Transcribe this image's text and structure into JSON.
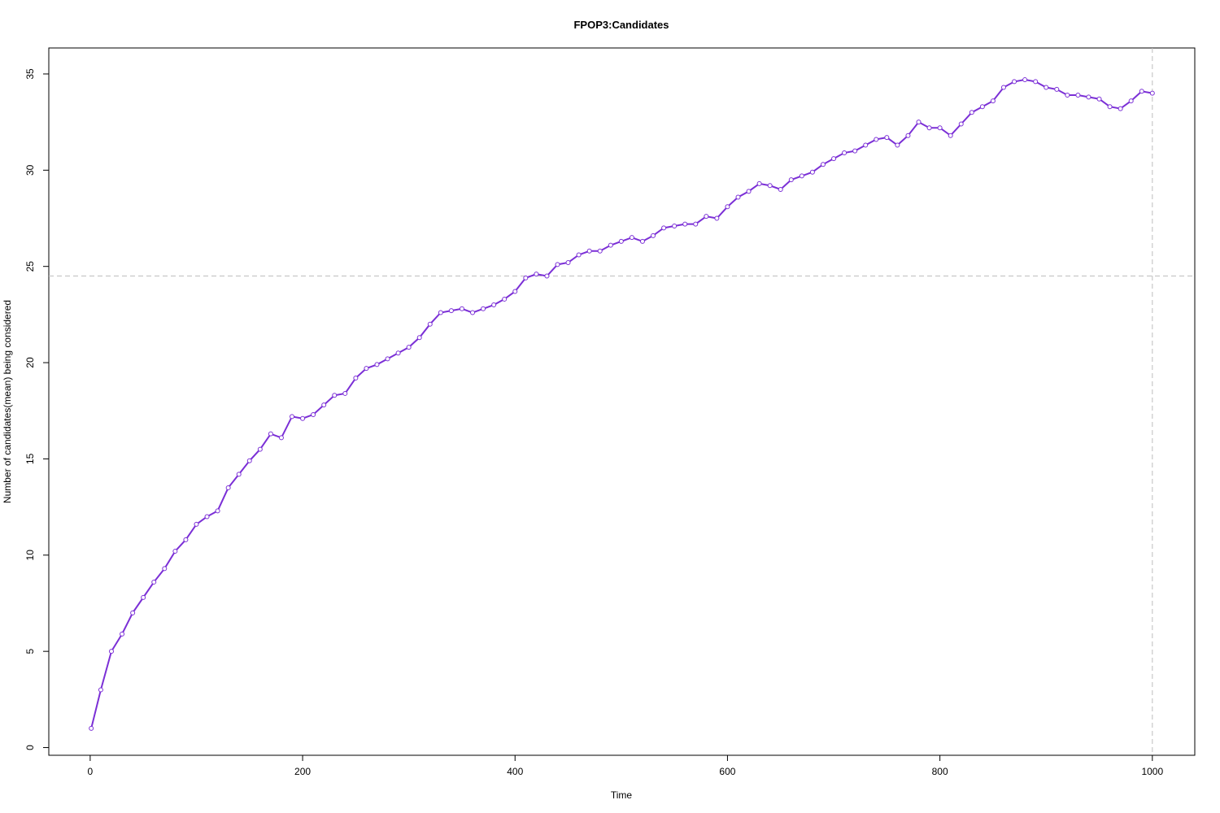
{
  "chart_data": {
    "type": "line",
    "title": "FPOP3:Candidates",
    "x_label": "Time",
    "y_label": "Number of candidates(mean) being considered",
    "x": [
      1,
      10,
      20,
      30,
      40,
      50,
      60,
      70,
      80,
      90,
      100,
      110,
      120,
      130,
      140,
      150,
      160,
      170,
      180,
      190,
      200,
      210,
      220,
      230,
      240,
      250,
      260,
      270,
      280,
      290,
      300,
      310,
      320,
      330,
      340,
      350,
      360,
      370,
      380,
      390,
      400,
      410,
      420,
      430,
      440,
      450,
      460,
      470,
      480,
      490,
      500,
      510,
      520,
      530,
      540,
      550,
      560,
      570,
      580,
      590,
      600,
      610,
      620,
      630,
      640,
      650,
      660,
      670,
      680,
      690,
      700,
      710,
      720,
      730,
      740,
      750,
      760,
      770,
      780,
      790,
      800,
      810,
      820,
      830,
      840,
      850,
      860,
      870,
      880,
      890,
      900,
      910,
      920,
      930,
      940,
      950,
      960,
      970,
      980,
      990,
      1000
    ],
    "series": [
      {
        "color": "#7b2fd6",
        "values": [
          1.0,
          3.0,
          5.0,
          5.9,
          7.0,
          7.8,
          8.6,
          9.3,
          10.2,
          10.8,
          11.6,
          12.0,
          12.3,
          13.5,
          14.2,
          14.9,
          15.5,
          16.3,
          16.1,
          17.2,
          17.1,
          17.3,
          17.8,
          18.3,
          18.4,
          19.2,
          19.7,
          19.9,
          20.2,
          20.5,
          20.8,
          21.3,
          22.0,
          22.6,
          22.7,
          22.8,
          22.6,
          22.8,
          23.0,
          23.3,
          23.7,
          24.4,
          24.6,
          24.5,
          25.1,
          25.2,
          25.6,
          25.8,
          25.8,
          26.1,
          26.3,
          26.5,
          26.3,
          26.6,
          27.0,
          27.1,
          27.2,
          27.2,
          27.6,
          27.5,
          28.1,
          28.6,
          28.9,
          29.3,
          29.2,
          29.0,
          29.5,
          29.7,
          29.9,
          30.3,
          30.6,
          30.9,
          31.0,
          31.3,
          31.6,
          31.7,
          31.3,
          31.8,
          32.5,
          32.2,
          32.2,
          31.8,
          32.4,
          33.0,
          33.3,
          33.6,
          34.3,
          34.6,
          34.7,
          34.6,
          34.3,
          34.2,
          33.9,
          33.9,
          33.8,
          33.7,
          33.3,
          33.2,
          33.6,
          34.1,
          34.0
        ]
      }
    ],
    "xlim": [
      -38.96,
      1039.96
    ],
    "xticks": [
      0,
      200,
      400,
      600,
      800,
      1000
    ],
    "ylim": [
      -0.4,
      36.35
    ],
    "yticks": [
      0,
      5,
      10,
      15,
      20,
      25,
      30,
      35
    ],
    "hline": 24.5,
    "vline": 1000,
    "refline_color": "#bebebe"
  }
}
